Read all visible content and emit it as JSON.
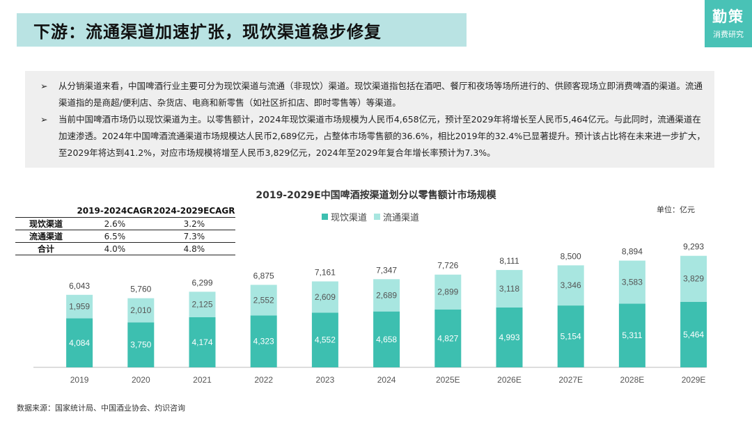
{
  "title": "下游：流通渠道加速扩张，现饮渠道稳步修复",
  "logo": {
    "main": "勤策",
    "sub": "消费研究"
  },
  "bullet_symbol": "➢",
  "paragraphs": [
    "从分销渠道来看，中国啤酒行业主要可分为现饮渠道与流通（非现饮）渠道。现饮渠道指包括在酒吧、餐厅和夜场等场所进行的、供顾客现场立即消费啤酒的渠道。流通渠道指的是商超/便利店、杂货店、电商和新零售（如社区折扣店、即时零售等）等渠道。",
    "当前中国啤酒市场仍以现饮渠道为主。以零售额计，2024年现饮渠道市场规模为人民币4,658亿元，预计至2029年将增长至人民币5,464亿元。与此同时，流通渠道在加速渗透。2024年中国啤酒流通渠道市场规模达人民币2,689亿元，占整体市场零售额的36.6%，相比2019年的32.4%已显著提升。预计该占比将在未来进一步扩大，至2029年将达到41.2%，对应市场规模将增至人民币3,829亿元，2024年至2029年复合年增长率预计为7.3%。"
  ],
  "cagr_table": {
    "headers": [
      "",
      "2019-2024CAGR",
      "2024-2029ECAGR"
    ],
    "rows": [
      [
        "现饮渠道",
        "2.6%",
        "3.2%"
      ],
      [
        "流通渠道",
        "6.5%",
        "7.3%"
      ],
      [
        "合计",
        "4.0%",
        "4.8%"
      ]
    ]
  },
  "unit_label": "单位：亿元",
  "source": "数据来源：国家统计局、中国酒业协会、灼识咨询",
  "chart_data": {
    "type": "bar",
    "stacked": true,
    "title": "2019-2029E中国啤酒按渠道划分以零售额计市场规模",
    "categories": [
      "2019",
      "2020",
      "2021",
      "2022",
      "2023",
      "2024",
      "2025E",
      "2026E",
      "2027E",
      "2028E",
      "2029E"
    ],
    "series": [
      {
        "name": "现饮渠道",
        "color": "#3dbfb0",
        "values": [
          4084,
          3750,
          4174,
          4323,
          4552,
          4658,
          4827,
          4993,
          5154,
          5311,
          5464
        ]
      },
      {
        "name": "流通渠道",
        "color": "#a8e6e0",
        "values": [
          1959,
          2010,
          2125,
          2552,
          2609,
          2689,
          2899,
          3118,
          3346,
          3583,
          3829
        ]
      }
    ],
    "totals": [
      "6,043",
      "5,760",
      "6,299",
      "6,875",
      "7,161",
      "7,347",
      "7,726",
      "8,111",
      "8,500",
      "8,894",
      "9,293"
    ],
    "value_labels": {
      "现饮渠道": [
        "4,084",
        "3,750",
        "4,174",
        "4,323",
        "4,552",
        "4,658",
        "4,827",
        "4,993",
        "5,154",
        "5,311",
        "5,464"
      ],
      "流通渠道": [
        "1,959",
        "2,010",
        "2,125",
        "2,552",
        "2,609",
        "2,689",
        "2,899",
        "3,118",
        "3,346",
        "3,583",
        "3,829"
      ]
    },
    "legend_position": "top",
    "xlabel": "",
    "ylabel": "",
    "ylim": [
      0,
      9300
    ]
  }
}
